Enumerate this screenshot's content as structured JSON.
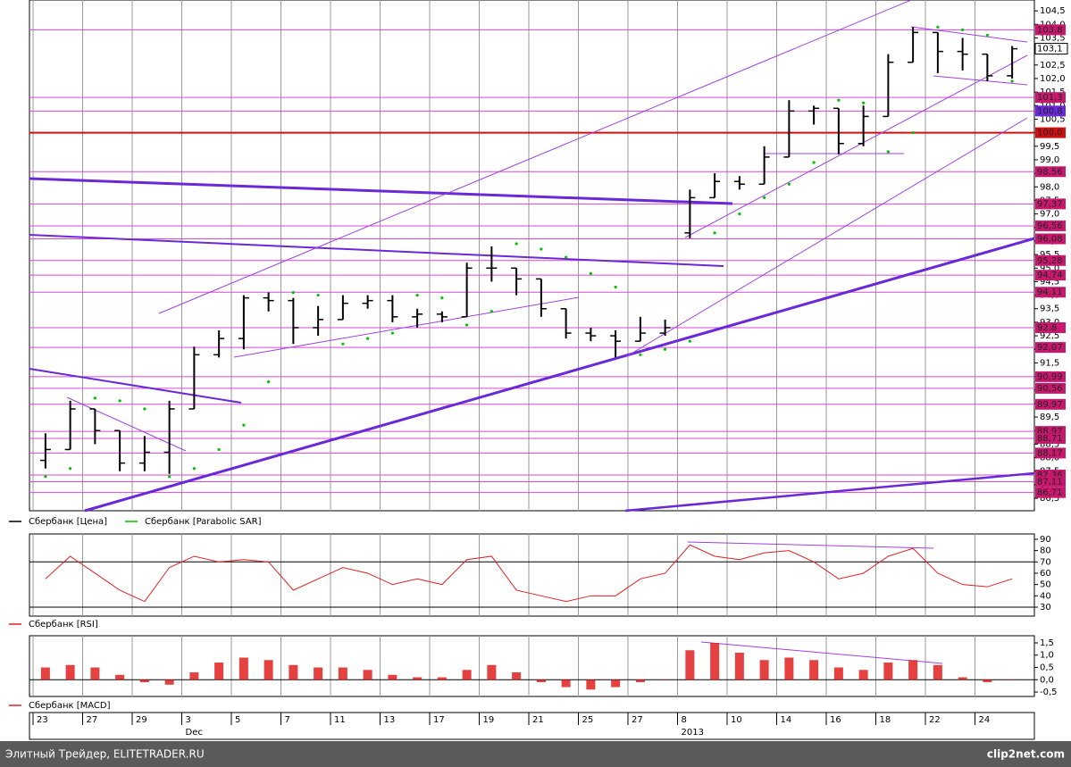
{
  "chart_data": [
    {
      "type": "ohlc",
      "categories": [
        "23",
        null,
        "27",
        null,
        "29",
        null,
        "3",
        null,
        "5",
        null,
        "7",
        null,
        "11",
        null,
        "13",
        null,
        "17",
        null,
        "19",
        null,
        "21",
        null,
        "25",
        null,
        "27",
        null,
        "8",
        null,
        "10",
        null,
        "14",
        null,
        "16",
        null,
        "18",
        null,
        "22",
        null,
        "24",
        null
      ],
      "month_labels": [
        null,
        null,
        null,
        null,
        null,
        null,
        "Dec",
        null,
        null,
        null,
        null,
        null,
        null,
        null,
        null,
        null,
        null,
        null,
        null,
        null,
        null,
        null,
        null,
        null,
        null,
        null,
        "2013",
        null,
        null,
        null,
        null,
        null,
        null,
        null,
        null,
        null,
        null,
        null,
        null,
        null
      ],
      "series": [
        {
          "name": "Сбербанк [Цена]",
          "color": "#000000",
          "open": [
            87.9,
            88.3,
            89.8,
            89.0,
            87.8,
            88.2,
            89.8,
            91.8,
            92.4,
            93.9,
            93.8,
            92.8,
            93.1,
            93.7,
            93.8,
            93.2,
            93.3,
            93.2,
            95.0,
            95.0,
            94.6,
            93.5,
            92.6,
            92.5,
            92.3,
            92.6,
            96.3,
            97.6,
            98.2,
            98.1,
            99.1,
            100.8,
            100.9,
            99.6,
            100.6,
            102.6,
            103.7,
            103.0,
            102.9,
            102.1
          ],
          "high": [
            88.9,
            90.1,
            89.8,
            89.0,
            88.8,
            90.1,
            92.1,
            92.7,
            94.0,
            94.1,
            93.9,
            93.6,
            94.0,
            94.0,
            94.0,
            93.5,
            93.4,
            95.2,
            95.8,
            95.0,
            94.6,
            93.5,
            92.8,
            92.7,
            93.2,
            93.1,
            97.9,
            98.5,
            98.4,
            99.5,
            101.2,
            101.0,
            100.9,
            101.0,
            102.9,
            103.9,
            103.7,
            103.5,
            102.9,
            103.2
          ],
          "low": [
            87.6,
            88.3,
            88.5,
            87.5,
            87.5,
            87.4,
            89.8,
            91.7,
            92.0,
            93.4,
            92.2,
            92.5,
            93.1,
            93.5,
            93.0,
            92.8,
            93.0,
            93.2,
            94.5,
            94.0,
            93.2,
            92.4,
            92.3,
            91.7,
            92.3,
            92.5,
            96.1,
            97.6,
            97.9,
            98.1,
            99.1,
            100.3,
            99.2,
            99.5,
            100.6,
            102.6,
            102.2,
            102.3,
            101.9,
            102.0
          ],
          "close": [
            88.3,
            89.8,
            89.0,
            87.8,
            88.2,
            89.8,
            91.8,
            92.4,
            93.9,
            93.8,
            92.8,
            93.1,
            93.7,
            93.8,
            93.2,
            93.3,
            93.2,
            95.0,
            95.0,
            94.6,
            93.5,
            92.6,
            92.5,
            92.3,
            92.6,
            92.8,
            97.6,
            98.2,
            98.1,
            99.1,
            100.8,
            100.9,
            99.6,
            100.6,
            102.6,
            103.7,
            103.0,
            102.9,
            102.1,
            103.1
          ]
        },
        {
          "name": "Сбербанк [Parabolic SAR]",
          "color": "#00c000",
          "values": [
            87.3,
            87.6,
            90.2,
            90.1,
            89.8,
            87.3,
            87.6,
            88.3,
            89.2,
            90.8,
            94.1,
            94.0,
            92.2,
            92.4,
            92.6,
            94.0,
            93.9,
            92.9,
            93.4,
            95.9,
            95.7,
            95.4,
            94.8,
            94.3,
            91.8,
            92.0,
            92.3,
            96.3,
            97.0,
            97.6,
            98.1,
            98.9,
            101.2,
            101.1,
            99.3,
            100.0,
            103.9,
            103.8,
            103.6,
            101.9
          ]
        }
      ],
      "ylim": [
        86.04,
        104.9
      ],
      "yticks": [
        {
          "value": 86.5,
          "label": "86,5"
        },
        {
          "value": 87,
          "label": "87,0"
        },
        {
          "value": 87.5,
          "label": "87,5"
        },
        {
          "value": 88,
          "label": "88,0"
        },
        {
          "value": 88.5,
          "label": "88,5"
        },
        {
          "value": 89,
          "label": "89,0"
        },
        {
          "value": 89.5,
          "label": "89,5"
        },
        {
          "value": 90,
          "label": "90,0"
        },
        {
          "value": 90.5,
          "label": "90,5"
        },
        {
          "value": 91,
          "label": "91,0"
        },
        {
          "value": 91.5,
          "label": "91,5"
        },
        {
          "value": 92,
          "label": "92,0"
        },
        {
          "value": 92.5,
          "label": "92,5"
        },
        {
          "value": 93,
          "label": "93,0"
        },
        {
          "value": 93.5,
          "label": "93,5"
        },
        {
          "value": 94,
          "label": "94,0"
        },
        {
          "value": 94.5,
          "label": "94,5"
        },
        {
          "value": 95,
          "label": "95,0"
        },
        {
          "value": 95.5,
          "label": "95,5"
        },
        {
          "value": 96,
          "label": "96,0"
        },
        {
          "value": 96.5,
          "label": "96,5"
        },
        {
          "value": 97,
          "label": "97,0"
        },
        {
          "value": 97.5,
          "label": "97,5"
        },
        {
          "value": 98,
          "label": "98,0"
        },
        {
          "value": 98.5,
          "label": "98,5"
        },
        {
          "value": 99,
          "label": "99,0"
        },
        {
          "value": 99.5,
          "label": "99,5"
        },
        {
          "value": 100,
          "label": "100,0"
        },
        {
          "value": 100.5,
          "label": "100,5"
        },
        {
          "value": 101,
          "label": "101,0"
        },
        {
          "value": 101.5,
          "label": "101,5"
        },
        {
          "value": 102,
          "label": "102,0"
        },
        {
          "value": 102.5,
          "label": "102,5"
        },
        {
          "value": 103,
          "label": "103,0"
        },
        {
          "value": 103.5,
          "label": "103,5"
        },
        {
          "value": 104,
          "label": "104,0"
        },
        {
          "value": 104.5,
          "label": "104,5"
        }
      ],
      "levels": [
        {
          "value": 103.8,
          "label": "103,8",
          "color": "#c8186e"
        },
        {
          "value": 101.3,
          "label": "101,3",
          "color": "#c8186e"
        },
        {
          "value": 100.8,
          "label": "100,8",
          "color": "#6a28d8"
        },
        {
          "value": 100.0,
          "label": "100,0",
          "color": "#d01010"
        },
        {
          "value": 98.56,
          "label": "98,56",
          "color": "#c8186e"
        },
        {
          "value": 97.37,
          "label": "97,37",
          "color": "#c8186e"
        },
        {
          "value": 96.56,
          "label": "96,56",
          "color": "#c8186e"
        },
        {
          "value": 96.08,
          "label": "96,08",
          "color": "#c8186e"
        },
        {
          "value": 95.28,
          "label": "95,28",
          "color": "#c8186e"
        },
        {
          "value": 94.74,
          "label": "94,74",
          "color": "#c8186e"
        },
        {
          "value": 94.11,
          "label": "94,11",
          "color": "#c8186e"
        },
        {
          "value": 92.8,
          "label": "92,8",
          "color": "#c8186e"
        },
        {
          "value": 92.07,
          "label": "92,07",
          "color": "#c8186e"
        },
        {
          "value": 90.99,
          "label": "90,99",
          "color": "#c8186e"
        },
        {
          "value": 90.56,
          "label": "90,56",
          "color": "#c8186e"
        },
        {
          "value": 89.97,
          "label": "89,97",
          "color": "#c8186e"
        },
        {
          "value": 88.97,
          "label": "88,97",
          "color": "#c8186e"
        },
        {
          "value": 88.71,
          "label": "88,71",
          "color": "#c8186e"
        },
        {
          "value": 88.17,
          "label": "88,17",
          "color": "#c8186e"
        },
        {
          "value": 87.36,
          "label": "87,36",
          "color": "#c8186e"
        },
        {
          "value": 87.11,
          "label": "87,11",
          "color": "#c8186e"
        },
        {
          "value": 86.71,
          "label": "86,71",
          "color": "#c8186e"
        }
      ],
      "last_price": {
        "value": 103.1,
        "label": "103,1"
      }
    },
    {
      "type": "line",
      "series": [
        {
          "name": "Сбербанк [RSI]",
          "color": "#e02020",
          "values": [
            55,
            75,
            60,
            45,
            35,
            65,
            75,
            70,
            72,
            70,
            45,
            55,
            65,
            60,
            50,
            55,
            50,
            72,
            75,
            45,
            40,
            35,
            40,
            40,
            55,
            60,
            85,
            75,
            72,
            78,
            80,
            70,
            55,
            60,
            75,
            82,
            60,
            50,
            48,
            55
          ]
        }
      ],
      "ylim": [
        22.1,
        94.7
      ],
      "yticks": [
        30,
        40,
        50,
        60,
        70,
        80,
        90
      ],
      "bands": [
        30,
        70
      ]
    },
    {
      "type": "bar",
      "series": [
        {
          "name": "Сбербанк [MACD]",
          "color": "#e02020",
          "values": [
            0.5,
            0.6,
            0.5,
            0.2,
            -0.1,
            -0.2,
            0.3,
            0.7,
            0.9,
            0.8,
            0.6,
            0.5,
            0.5,
            0.4,
            0.2,
            0.1,
            0.1,
            0.4,
            0.6,
            0.3,
            -0.1,
            -0.3,
            -0.4,
            -0.3,
            -0.1,
            0.0,
            1.2,
            1.5,
            1.1,
            0.8,
            0.9,
            0.8,
            0.5,
            0.4,
            0.7,
            0.8,
            0.6,
            0.1,
            -0.1,
            0.0
          ]
        }
      ],
      "ylim": [
        -0.68,
        1.79
      ],
      "yticks": [
        {
          "value": -0.5,
          "label": "-0,5"
        },
        {
          "value": 0,
          "label": "0,0"
        },
        {
          "value": 0.5,
          "label": "0,5"
        },
        {
          "value": 1,
          "label": "1,0"
        },
        {
          "value": 1.5,
          "label": "1,5"
        }
      ]
    }
  ],
  "footer": {
    "left": "Элитный Трейдер, ELITETRADER.RU",
    "right": "clip2net.com"
  }
}
